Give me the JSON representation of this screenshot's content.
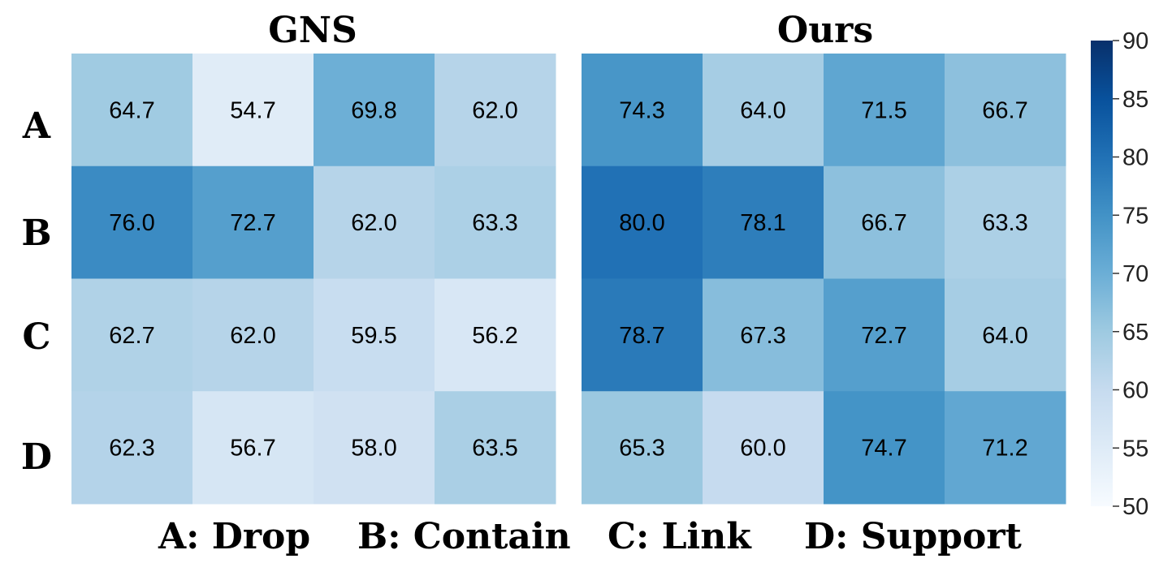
{
  "chart_data": [
    {
      "type": "heatmap",
      "title": "GNS",
      "row_labels": [
        "A",
        "B",
        "C",
        "D"
      ],
      "values": [
        [
          64.7,
          54.7,
          69.8,
          62.0
        ],
        [
          76.0,
          72.7,
          62.0,
          63.3
        ],
        [
          62.7,
          62.0,
          59.5,
          56.2
        ],
        [
          62.3,
          56.7,
          58.0,
          63.5
        ]
      ],
      "labels": [
        [
          "64.7",
          "54.7",
          "69.8",
          "62.0"
        ],
        [
          "76.0",
          "72.7",
          "62.0",
          "63.3"
        ],
        [
          "62.7",
          "62.0",
          "59.5",
          "56.2"
        ],
        [
          "62.3",
          "56.7",
          "58.0",
          "63.5"
        ]
      ]
    },
    {
      "type": "heatmap",
      "title": "Ours",
      "row_labels": [
        "A",
        "B",
        "C",
        "D"
      ],
      "values": [
        [
          74.3,
          64.0,
          71.5,
          66.7
        ],
        [
          80.0,
          78.1,
          66.7,
          63.3
        ],
        [
          78.7,
          67.3,
          72.7,
          64.0
        ],
        [
          65.3,
          60.0,
          74.7,
          71.2
        ]
      ],
      "labels": [
        [
          "74.3",
          "64.0",
          "71.5",
          "66.7"
        ],
        [
          "80.0",
          "78.1",
          "66.7",
          "63.3"
        ],
        [
          "78.7",
          "67.3",
          "72.7",
          "64.0"
        ],
        [
          "65.3",
          "60.0",
          "74.7",
          "71.2"
        ]
      ]
    }
  ],
  "colorbar": {
    "min": 50,
    "max": 90,
    "ticks": [
      "50",
      "55",
      "60",
      "65",
      "70",
      "75",
      "80",
      "85",
      "90"
    ],
    "colormap": "Blues"
  },
  "legend": [
    "A: Drop",
    "B: Contain",
    "C: Link",
    "D: Support"
  ]
}
